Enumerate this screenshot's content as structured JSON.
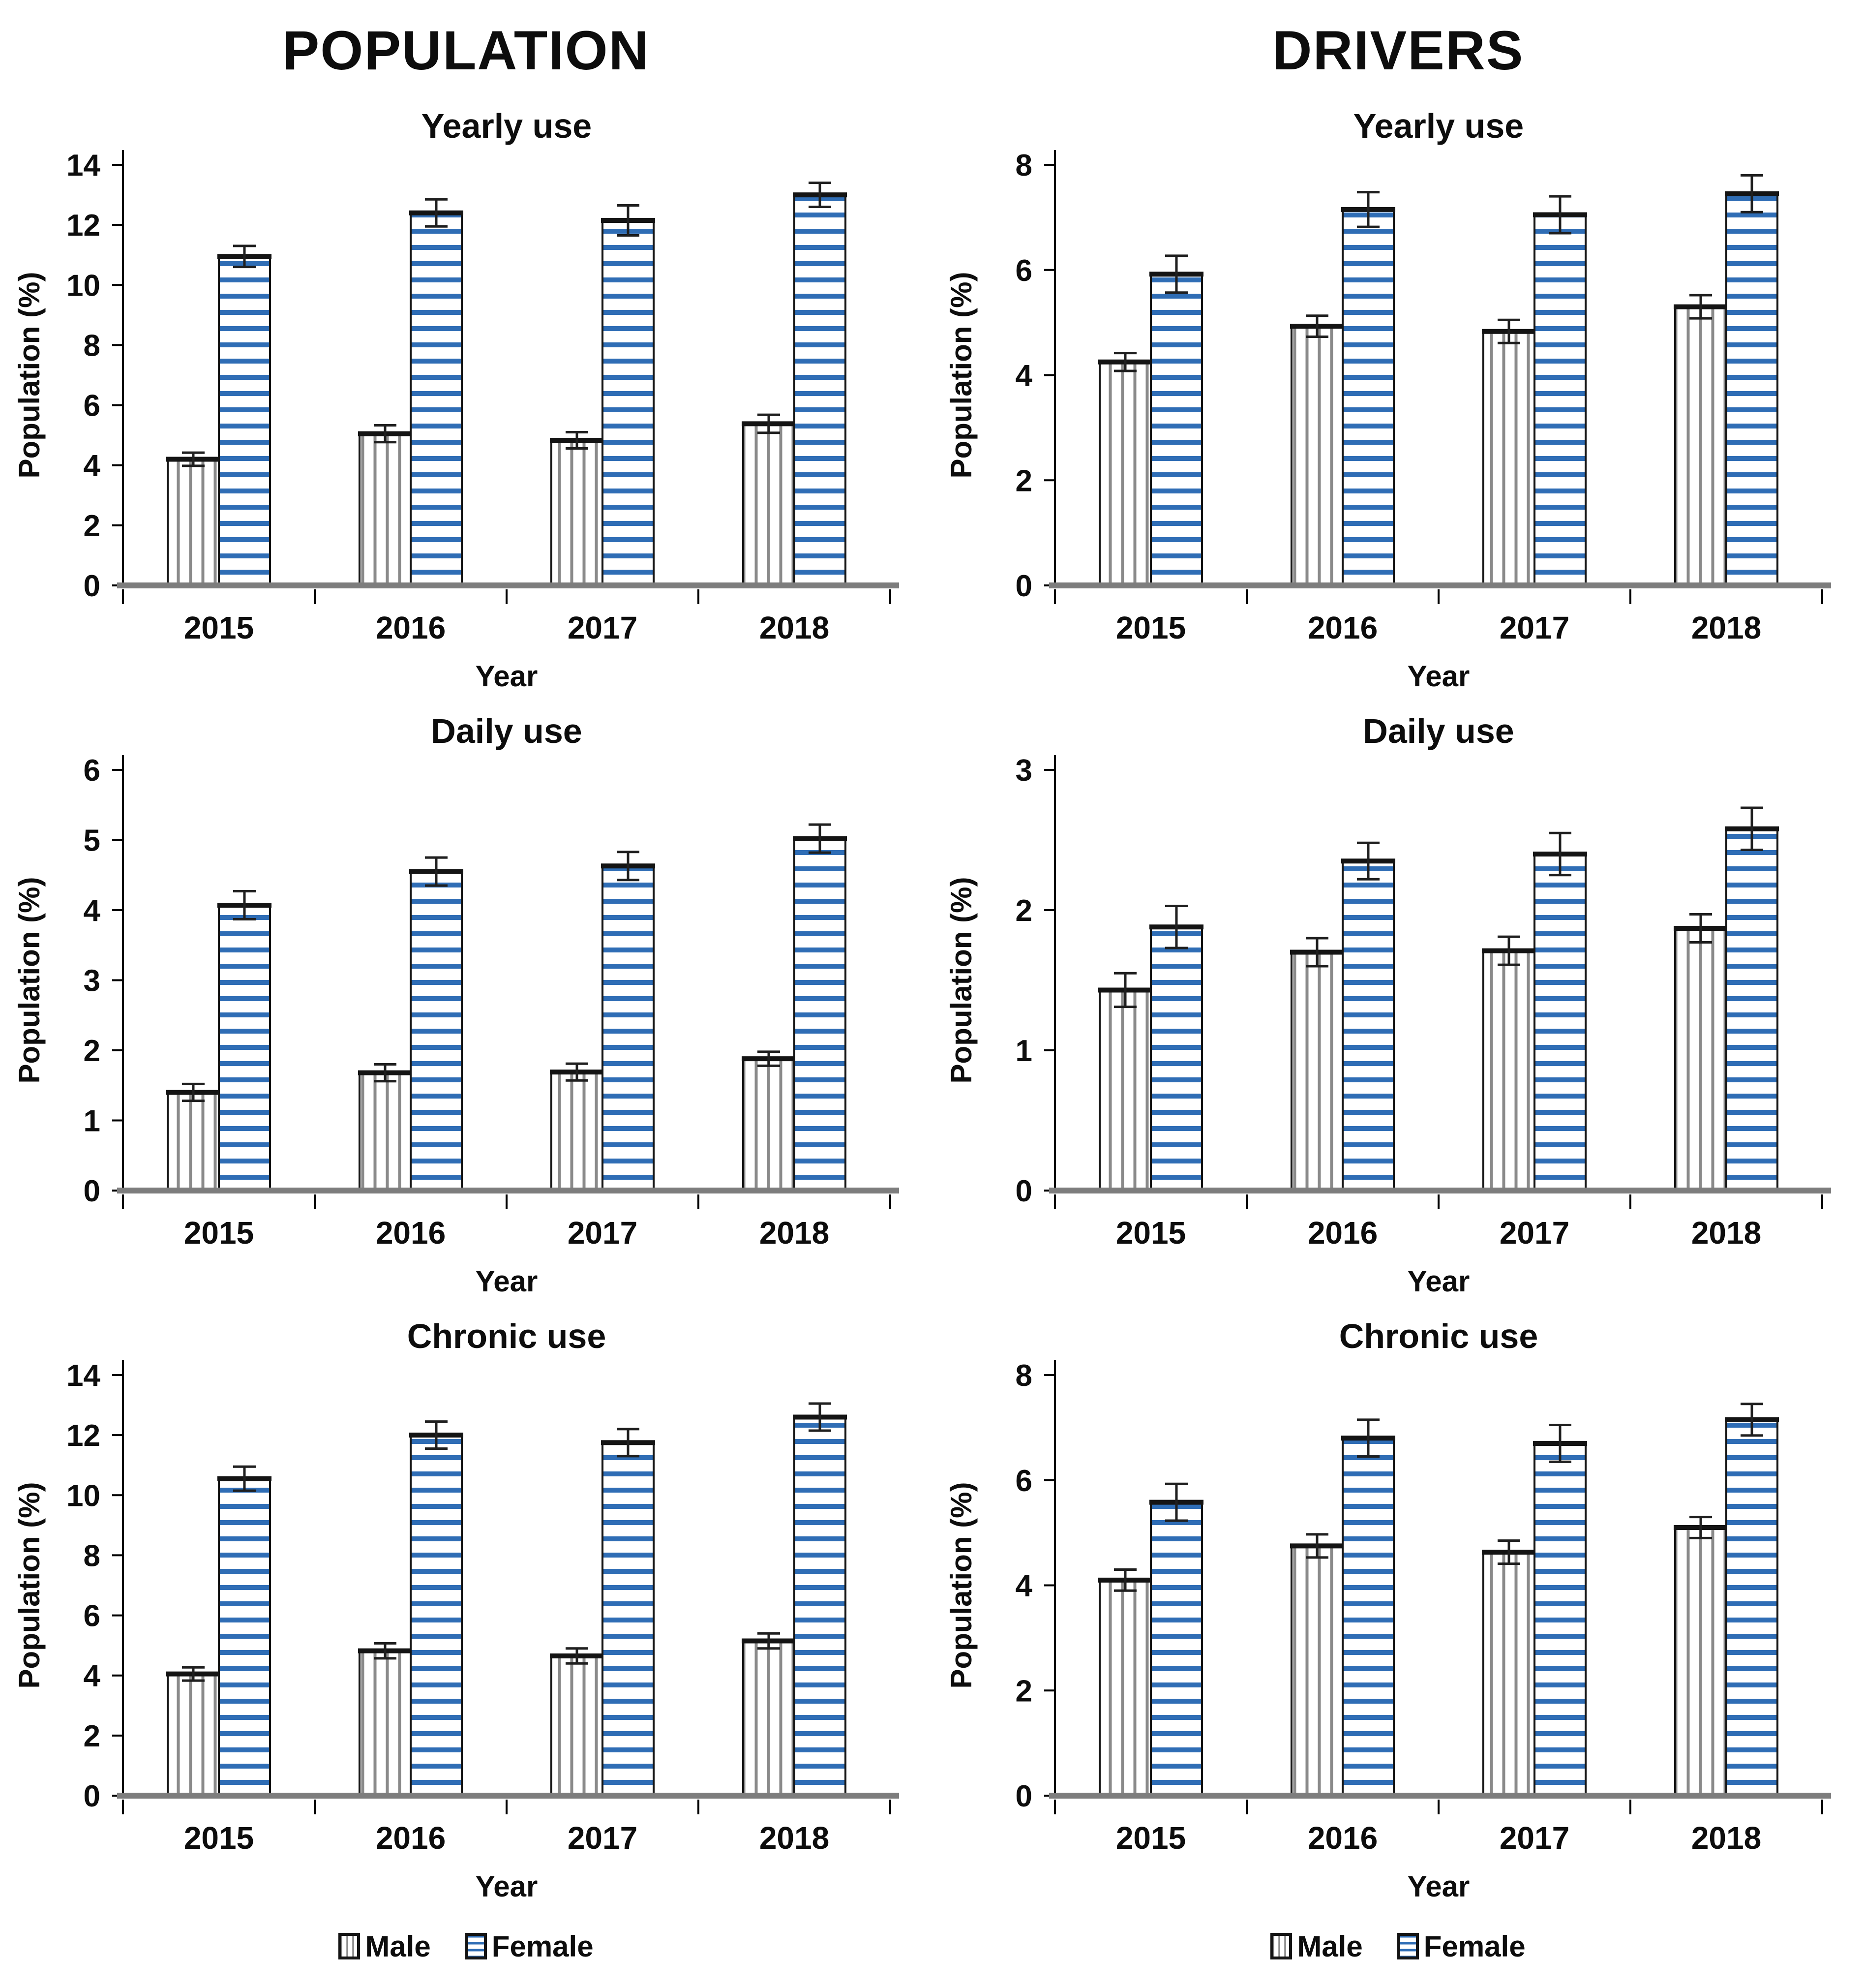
{
  "figure": {
    "description": "Grouped bar charts of cannabis use prevalence by sex, population vs drivers, 2015-2018"
  },
  "columns": [
    {
      "title": "POPULATION",
      "charts": [
        "population-yearly",
        "population-daily",
        "population-chronic"
      ]
    },
    {
      "title": "DRIVERS",
      "charts": [
        "drivers-yearly",
        "drivers-daily",
        "drivers-chronic"
      ]
    }
  ],
  "legend": {
    "male_label": "Male",
    "female_label": "Female"
  },
  "colors": {
    "female_stripe": "#2f6db5",
    "male_stripe": "#8a8a8a",
    "bar_outline": "#141414",
    "error_bar": "#1f1f1f",
    "axis_baseline": "#7d7d7d",
    "axis_line": "#000000"
  },
  "chart_data": [
    {
      "panel": "population-yearly",
      "type": "bar",
      "title": "Yearly use",
      "xlabel": "Year",
      "ylabel": "Population (%)",
      "categories": [
        "2015",
        "2016",
        "2017",
        "2018"
      ],
      "ylim": [
        0,
        14
      ],
      "ytick_step": 2,
      "grid": false,
      "legend_position": "bottom",
      "series": [
        {
          "name": "Male",
          "values": [
            4.2,
            5.05,
            4.83,
            5.38
          ],
          "errors": [
            0.22,
            0.28,
            0.27,
            0.3
          ]
        },
        {
          "name": "Female",
          "values": [
            10.95,
            12.4,
            12.15,
            13.0
          ],
          "errors": [
            0.35,
            0.45,
            0.5,
            0.4
          ]
        }
      ]
    },
    {
      "panel": "population-daily",
      "type": "bar",
      "title": "Daily use",
      "xlabel": "Year",
      "ylabel": "Population (%)",
      "categories": [
        "2015",
        "2016",
        "2017",
        "2018"
      ],
      "ylim": [
        0,
        6
      ],
      "ytick_step": 1,
      "grid": false,
      "legend_position": "bottom",
      "series": [
        {
          "name": "Male",
          "values": [
            1.4,
            1.68,
            1.69,
            1.88
          ],
          "errors": [
            0.12,
            0.12,
            0.12,
            0.1
          ]
        },
        {
          "name": "Female",
          "values": [
            4.07,
            4.55,
            4.63,
            5.02
          ],
          "errors": [
            0.2,
            0.2,
            0.2,
            0.2
          ]
        }
      ]
    },
    {
      "panel": "population-chronic",
      "type": "bar",
      "title": "Chronic use",
      "xlabel": "Year",
      "ylabel": "Population (%)",
      "categories": [
        "2015",
        "2016",
        "2017",
        "2018"
      ],
      "ylim": [
        0,
        14
      ],
      "ytick_step": 2,
      "grid": false,
      "legend_position": "bottom",
      "series": [
        {
          "name": "Male",
          "values": [
            4.05,
            4.82,
            4.65,
            5.15
          ],
          "errors": [
            0.22,
            0.25,
            0.25,
            0.25
          ]
        },
        {
          "name": "Female",
          "values": [
            10.55,
            12.0,
            11.75,
            12.6
          ],
          "errors": [
            0.4,
            0.45,
            0.45,
            0.45
          ]
        }
      ]
    },
    {
      "panel": "drivers-yearly",
      "type": "bar",
      "title": "Yearly use",
      "xlabel": "Year",
      "ylabel": "Population (%)",
      "categories": [
        "2015",
        "2016",
        "2017",
        "2018"
      ],
      "ylim": [
        0,
        8
      ],
      "ytick_step": 2,
      "grid": false,
      "legend_position": "bottom",
      "series": [
        {
          "name": "Male",
          "values": [
            4.25,
            4.93,
            4.83,
            5.3
          ],
          "errors": [
            0.17,
            0.2,
            0.22,
            0.22
          ]
        },
        {
          "name": "Female",
          "values": [
            5.92,
            7.15,
            7.05,
            7.45
          ],
          "errors": [
            0.35,
            0.33,
            0.35,
            0.35
          ]
        }
      ]
    },
    {
      "panel": "drivers-daily",
      "type": "bar",
      "title": "Daily use",
      "xlabel": "Year",
      "ylabel": "Population (%)",
      "categories": [
        "2015",
        "2016",
        "2017",
        "2018"
      ],
      "ylim": [
        0,
        3
      ],
      "ytick_step": 1,
      "grid": false,
      "legend_position": "bottom",
      "series": [
        {
          "name": "Male",
          "values": [
            1.43,
            1.7,
            1.71,
            1.87
          ],
          "errors": [
            0.12,
            0.1,
            0.1,
            0.1
          ]
        },
        {
          "name": "Female",
          "values": [
            1.88,
            2.35,
            2.4,
            2.58
          ],
          "errors": [
            0.15,
            0.13,
            0.15,
            0.15
          ]
        }
      ]
    },
    {
      "panel": "drivers-chronic",
      "type": "bar",
      "title": "Chronic use",
      "xlabel": "Year",
      "ylabel": "Population (%)",
      "categories": [
        "2015",
        "2016",
        "2017",
        "2018"
      ],
      "ylim": [
        0,
        8
      ],
      "ytick_step": 2,
      "grid": false,
      "legend_position": "bottom",
      "series": [
        {
          "name": "Male",
          "values": [
            4.1,
            4.75,
            4.63,
            5.1
          ],
          "errors": [
            0.2,
            0.22,
            0.22,
            0.2
          ]
        },
        {
          "name": "Female",
          "values": [
            5.58,
            6.8,
            6.7,
            7.15
          ],
          "errors": [
            0.35,
            0.35,
            0.35,
            0.3
          ]
        }
      ]
    }
  ]
}
